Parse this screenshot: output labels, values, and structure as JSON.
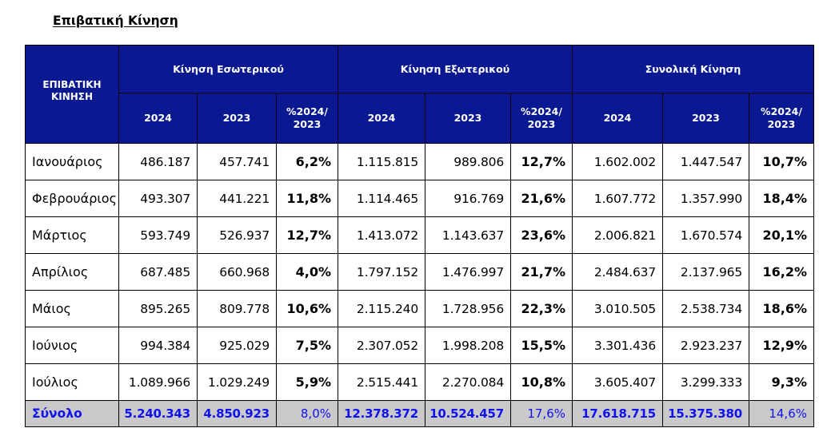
{
  "title": "Επιβατική Κίνηση",
  "table": {
    "corner_header": "ΕΠΙΒΑΤΙΚΗ ΚΙΝΗΣΗ",
    "groups": [
      "Κίνηση Εσωτερικού",
      "Κίνηση Εξωτερικού",
      "Συνολική Κίνηση"
    ],
    "sub_headers": [
      "2024",
      "2023",
      "%2024/ 2023",
      "2024",
      "2023",
      "%2024/ 2023",
      "2024",
      "2023",
      "%2024/ 2023"
    ],
    "rows": [
      {
        "month": "Ιανουάριος",
        "values": [
          "486.187",
          "457.741",
          "6,2%",
          "1.115.815",
          "989.806",
          "12,7%",
          "1.602.002",
          "1.447.547",
          "10,7%"
        ]
      },
      {
        "month": "Φεβρουάριος",
        "values": [
          "493.307",
          "441.221",
          "11,8%",
          "1.114.465",
          "916.769",
          "21,6%",
          "1.607.772",
          "1.357.990",
          "18,4%"
        ]
      },
      {
        "month": "Μάρτιος",
        "values": [
          "593.749",
          "526.937",
          "12,7%",
          "1.413.072",
          "1.143.637",
          "23,6%",
          "2.006.821",
          "1.670.574",
          "20,1%"
        ]
      },
      {
        "month": "Απρίλιος",
        "values": [
          "687.485",
          "660.968",
          "4,0%",
          "1.797.152",
          "1.476.997",
          "21,7%",
          "2.484.637",
          "2.137.965",
          "16,2%"
        ]
      },
      {
        "month": "Μάιος",
        "values": [
          "895.265",
          "809.778",
          "10,6%",
          "2.115.240",
          "1.728.956",
          "22,3%",
          "3.010.505",
          "2.538.734",
          "18,6%"
        ]
      },
      {
        "month": "Ιούνιος",
        "values": [
          "994.384",
          "925.029",
          "7,5%",
          "2.307.052",
          "1.998.208",
          "15,5%",
          "3.301.436",
          "2.923.237",
          "12,9%"
        ]
      },
      {
        "month": "Ιούλιος",
        "values": [
          "1.089.966",
          "1.029.249",
          "5,9%",
          "2.515.441",
          "2.270.084",
          "10,8%",
          "3.605.407",
          "3.299.333",
          "9,3%"
        ]
      }
    ],
    "total": {
      "label": "Σύνολο",
      "values": [
        "5.240.343",
        "4.850.923",
        "8,0%",
        "12.378.372",
        "10.524.457",
        "17,6%",
        "17.618.715",
        "15.375.380",
        "14,6%"
      ]
    }
  },
  "colors": {
    "header_bg": "#0a1891",
    "header_text": "#ffffff",
    "total_bg": "#c9c9c9",
    "total_text": "#1111ee"
  }
}
